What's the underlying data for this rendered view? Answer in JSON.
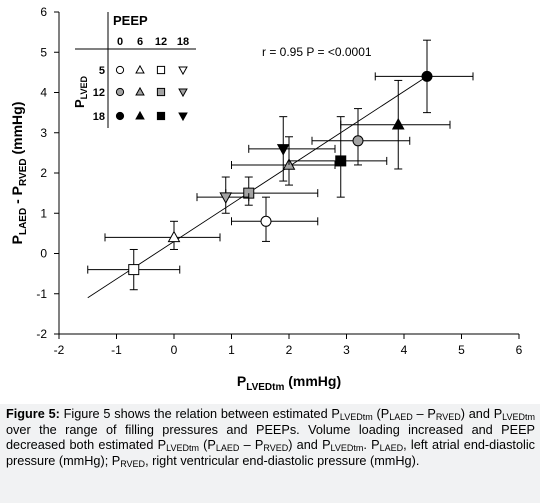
{
  "chart_data": {
    "type": "scatter",
    "x_axis": {
      "label_main": "P",
      "label_sub": "LVEDtm",
      "label_unit": " (mmHg)",
      "range": [
        -2,
        6
      ],
      "ticks": [
        -2,
        -1,
        0,
        1,
        2,
        3,
        4,
        5,
        6
      ]
    },
    "y_axis": {
      "label_main": "P",
      "label_sub1": "LAED",
      "label_mid": " - P",
      "label_sub2": "RVED",
      "label_unit": " (mmHg)",
      "range": [
        -2,
        6
      ],
      "ticks": [
        -2,
        -1,
        0,
        1,
        2,
        3,
        4,
        5,
        6
      ]
    },
    "annotation": "r = 0.95 P = <0.0001",
    "regression_line": {
      "x": [
        -1.5,
        4.4
      ],
      "y": [
        -1.1,
        4.4
      ]
    },
    "legend": {
      "title": "PEEP",
      "peep_values": [
        "0",
        "6",
        "12",
        "18"
      ],
      "row_title_main": "P",
      "row_title_sub": "LVED",
      "lved_values": [
        "5",
        "12",
        "18"
      ]
    },
    "series": [
      {
        "lved": "5",
        "peep": "0",
        "marker": "circle",
        "fill": "white",
        "x": 1.6,
        "y": 0.8,
        "xerr": [
          0.6,
          0.9
        ],
        "yerr": [
          0.5,
          0.6
        ]
      },
      {
        "lved": "5",
        "peep": "6",
        "marker": "triangle-up",
        "fill": "white",
        "x": 0.0,
        "y": 0.4,
        "xerr": [
          1.2,
          0.8
        ],
        "yerr": [
          0.3,
          0.4
        ]
      },
      {
        "lved": "5",
        "peep": "12",
        "marker": "square",
        "fill": "white",
        "x": -0.7,
        "y": -0.4,
        "xerr": [
          0.8,
          0.8
        ],
        "yerr": [
          0.5,
          0.5
        ]
      },
      {
        "lved": "12",
        "peep": "0",
        "marker": "circle",
        "fill": "gray",
        "x": 3.2,
        "y": 2.8,
        "xerr": [
          0.8,
          0.9
        ],
        "yerr": [
          0.6,
          0.8
        ]
      },
      {
        "lved": "12",
        "peep": "6",
        "marker": "triangle-up",
        "fill": "gray",
        "x": 2.0,
        "y": 2.2,
        "xerr": [
          1.0,
          0.8
        ],
        "yerr": [
          0.5,
          0.7
        ]
      },
      {
        "lved": "12",
        "peep": "12",
        "marker": "square",
        "fill": "gray",
        "x": 1.3,
        "y": 1.5,
        "xerr": [
          0.4,
          1.2
        ],
        "yerr": [
          0.3,
          0.4
        ]
      },
      {
        "lved": "12",
        "peep": "18",
        "marker": "triangle-down",
        "fill": "gray",
        "x": 0.9,
        "y": 1.4,
        "xerr": [
          0.5,
          0.4
        ],
        "yerr": [
          0.4,
          0.5
        ]
      },
      {
        "lved": "18",
        "peep": "0",
        "marker": "circle",
        "fill": "black",
        "x": 4.4,
        "y": 4.4,
        "xerr": [
          0.9,
          0.8
        ],
        "yerr": [
          0.9,
          0.9
        ]
      },
      {
        "lved": "18",
        "peep": "6",
        "marker": "triangle-up",
        "fill": "black",
        "x": 3.9,
        "y": 3.2,
        "xerr": [
          1.0,
          0.9
        ],
        "yerr": [
          1.1,
          1.1
        ]
      },
      {
        "lved": "18",
        "peep": "12",
        "marker": "square",
        "fill": "black",
        "x": 2.9,
        "y": 2.3,
        "xerr": [
          0.9,
          0.8
        ],
        "yerr": [
          0.9,
          1.1
        ]
      },
      {
        "lved": "18",
        "peep": "18",
        "marker": "triangle-down",
        "fill": "black",
        "x": 1.9,
        "y": 2.6,
        "xerr": [
          0.6,
          0.9
        ],
        "yerr": [
          0.8,
          0.8
        ]
      }
    ]
  },
  "caption": {
    "label": "Figure 5:",
    "segments": [
      {
        "t": " Figure 5 shows the relation between estimated P"
      },
      {
        "s": "LVEDtm"
      },
      {
        "t": " (P"
      },
      {
        "s": "LAED"
      },
      {
        "t": " – P"
      },
      {
        "s": "RVED"
      },
      {
        "t": ") and P"
      },
      {
        "s": "LVEDtm"
      },
      {
        "t": " over the range of filling pressures and PEEPs. Volume loading increased and PEEP decreased both estimated P"
      },
      {
        "s": "LVEDtm"
      },
      {
        "t": " (P"
      },
      {
        "s": "LAED"
      },
      {
        "t": " – P"
      },
      {
        "s": "RVED"
      },
      {
        "t": ") and P"
      },
      {
        "s": "LVEDtm"
      },
      {
        "t": ". P"
      },
      {
        "s": "LAED"
      },
      {
        "t": ", left atrial end-diastolic pressure (mmHg); P"
      },
      {
        "s": "RVED"
      },
      {
        "t": ", right ventricular end-diastolic pressure (mmHg)."
      }
    ]
  }
}
